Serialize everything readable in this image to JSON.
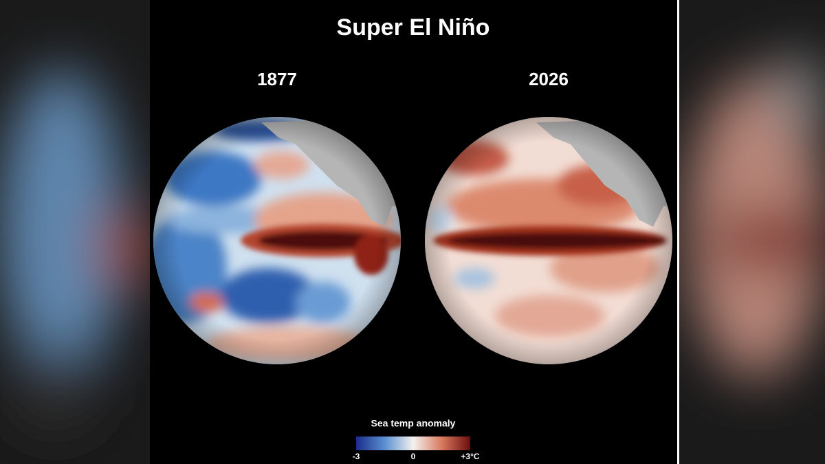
{
  "header": {
    "title": "Super El Niño"
  },
  "panels": [
    {
      "label": "1877"
    },
    {
      "label": "2026"
    }
  ],
  "legend": {
    "title": "Sea temp anomaly",
    "ticks": [
      "-3",
      "0",
      "+3°C"
    ]
  }
}
